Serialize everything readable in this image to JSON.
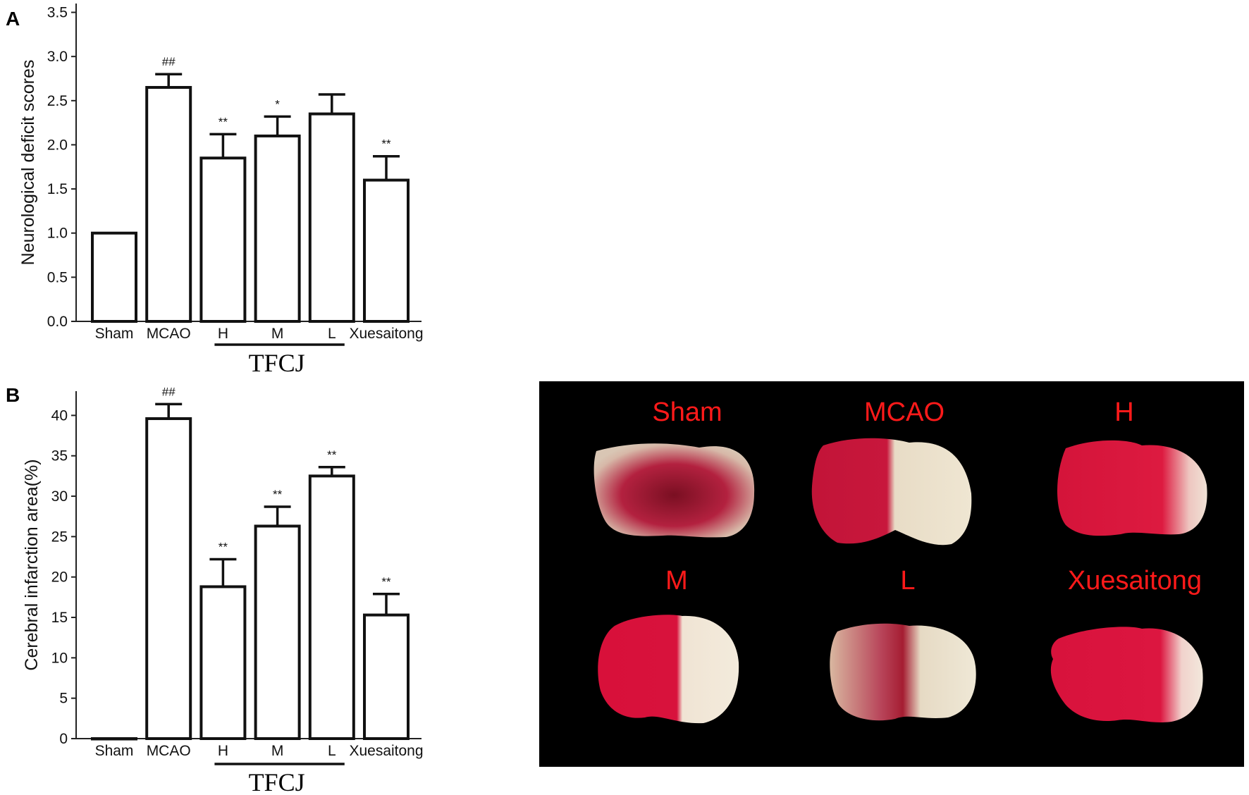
{
  "chart_data": [
    {
      "panel": "A",
      "type": "bar",
      "categories": [
        "Sham",
        "MCAO",
        "H",
        "M",
        "L",
        "Xuesaitong"
      ],
      "values": [
        1.0,
        2.65,
        1.85,
        2.1,
        2.35,
        1.6
      ],
      "error": [
        0.0,
        0.15,
        0.27,
        0.22,
        0.22,
        0.27
      ],
      "annotations": [
        "",
        "##",
        "**",
        "*",
        "",
        "**"
      ],
      "ylabel": "Neurological deficit scores",
      "xlabel": "",
      "ylim": [
        0,
        3.6
      ],
      "yticks": [
        "0.0",
        "0.5",
        "1.0",
        "1.5",
        "2.0",
        "2.5",
        "3.0",
        "3.5"
      ],
      "group_label": "TFCJ",
      "group_categories": [
        "H",
        "M",
        "L"
      ],
      "grid": false
    },
    {
      "panel": "B",
      "type": "bar",
      "categories": [
        "Sham",
        "MCAO",
        "H",
        "M",
        "L",
        "Xuesaitong"
      ],
      "values": [
        0,
        39.6,
        18.8,
        26.3,
        32.5,
        15.3
      ],
      "error": [
        0,
        1.8,
        3.4,
        2.4,
        1.1,
        2.6
      ],
      "annotations": [
        "",
        "##",
        "**",
        "**",
        "**",
        "**"
      ],
      "ylabel": "Cerebral infarction area(%)",
      "xlabel": "",
      "ylim": [
        0,
        43
      ],
      "yticks": [
        "0",
        "5",
        "10",
        "15",
        "20",
        "25",
        "30",
        "35",
        "40"
      ],
      "group_label": "TFCJ",
      "group_categories": [
        "H",
        "M",
        "L"
      ],
      "grid": false
    }
  ],
  "photo_panel": {
    "labels": [
      "Sham",
      "MCAO",
      "H",
      "M",
      "L",
      "Xuesaitong"
    ],
    "label_color": "#ff1a1a",
    "background": "#000000"
  }
}
